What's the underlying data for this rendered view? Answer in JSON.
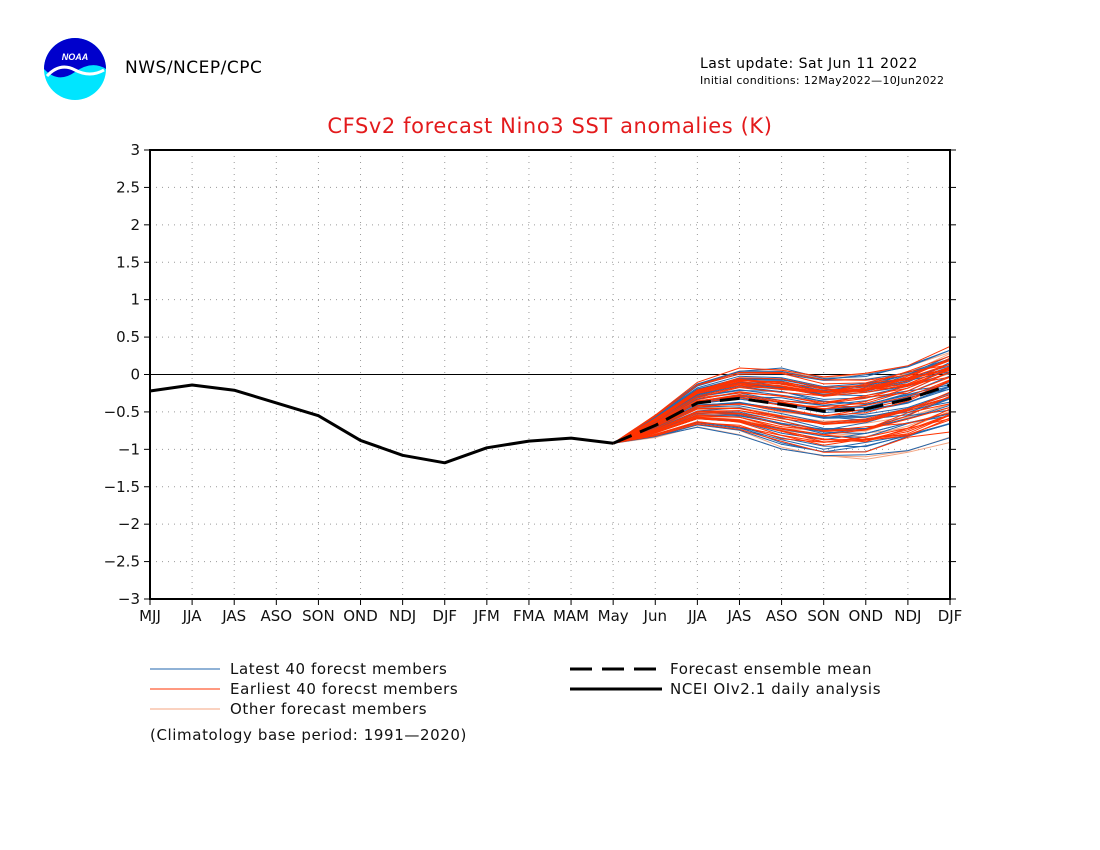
{
  "header": {
    "agency": "NWS/NCEP/CPC",
    "last_update": "Last update: Sat Jun 11 2022",
    "initial_conditions": "Initial conditions: 12May2022—10Jun2022",
    "logo_text": "NOAA"
  },
  "note": "(Climatology base period: 1991—2020)",
  "legend": {
    "latest": "Latest 40 forecst members",
    "earliest": "Earliest 40 forecst members",
    "other": "Other forecast members",
    "mean": "Forecast ensemble mean",
    "analysis": "NCEI OIv2.1 daily analysis"
  },
  "colors": {
    "title": "#e31a1c",
    "latest": "#2166ac",
    "earliest": "#ff3300",
    "other": "#f4a582",
    "analysis": "#000000",
    "grid": "#9a9a9a"
  },
  "chart_data": {
    "type": "line",
    "title": "CFSv2 forecast Nino3 SST anomalies (K)",
    "xlabel": "",
    "ylabel": "",
    "categories": [
      "MJJ",
      "JJA",
      "JAS",
      "ASO",
      "SON",
      "OND",
      "NDJ",
      "DJF",
      "JFM",
      "FMA",
      "MAM",
      "May",
      "Jun",
      "JJA",
      "JAS",
      "ASO",
      "SON",
      "OND",
      "NDJ",
      "DJF"
    ],
    "ylim": [
      -3,
      3
    ],
    "yticks": [
      "3",
      "2.5",
      "2",
      "1.5",
      "1",
      "0.5",
      "0",
      "−0.5",
      "−1",
      "−1.5",
      "−2",
      "−2.5",
      "−3"
    ],
    "grid": true,
    "zero_line": true,
    "series": [
      {
        "name": "NCEI OIv2.1 daily analysis",
        "style": "solid-thick",
        "values": [
          -0.22,
          -0.14,
          -0.21,
          -0.38,
          -0.55,
          -0.88,
          -1.08,
          -1.18,
          -0.98,
          -0.89,
          -0.85,
          -0.92,
          null,
          null,
          null,
          null,
          null,
          null,
          null,
          null
        ]
      },
      {
        "name": "Forecast ensemble mean",
        "style": "dashed-thick",
        "values": [
          null,
          null,
          null,
          null,
          null,
          null,
          null,
          null,
          null,
          null,
          null,
          -0.92,
          -0.68,
          -0.38,
          -0.32,
          -0.4,
          -0.49,
          -0.46,
          -0.33,
          -0.14
        ]
      },
      {
        "name": "Latest 40 forecst members",
        "color": "#2166ac",
        "envelope": [
          -1.15,
          0.75
        ],
        "count": 40
      },
      {
        "name": "Earliest 40 forecst members",
        "color": "#ff3300",
        "envelope": [
          -1.5,
          0.6
        ],
        "count": 40
      },
      {
        "name": "Other forecast members",
        "color": "#f4a582",
        "envelope": [
          -1.55,
          0.5
        ],
        "count": 12
      }
    ]
  }
}
